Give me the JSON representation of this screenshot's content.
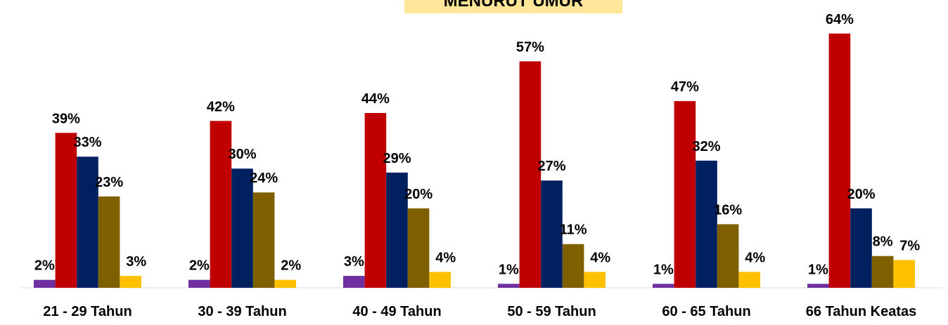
{
  "chart_data": {
    "type": "bar",
    "title": "MENURUT UMUR",
    "categories": [
      "21 - 29 Tahun",
      "30 - 39 Tahun",
      "40 - 49 Tahun",
      "50 - 59 Tahun",
      "60 - 65 Tahun",
      "66 Tahun Keatas"
    ],
    "series": [
      {
        "color": "#7030a0",
        "values": [
          2,
          2,
          3,
          1,
          1,
          1
        ],
        "value_labels": [
          "2%",
          "2%",
          "3%",
          "1%",
          "1%",
          "1%"
        ]
      },
      {
        "color": "#c00000",
        "values": [
          39,
          42,
          44,
          57,
          47,
          64
        ],
        "value_labels": [
          "39%",
          "42%",
          "44%",
          "57%",
          "47%",
          "64%"
        ]
      },
      {
        "color": "#002060",
        "values": [
          33,
          30,
          29,
          27,
          32,
          20
        ],
        "value_labels": [
          "33%",
          "30%",
          "29%",
          "27%",
          "32%",
          "20%"
        ]
      },
      {
        "color": "#7f6000",
        "values": [
          23,
          24,
          20,
          11,
          16,
          8
        ],
        "value_labels": [
          "23%",
          "24%",
          "20%",
          "11%",
          "16%",
          "8%"
        ]
      },
      {
        "color": "#ffc000",
        "values": [
          3,
          2,
          4,
          4,
          4,
          7
        ],
        "value_labels": [
          "3%",
          "2%",
          "4%",
          "4%",
          "4%",
          "7%"
        ]
      }
    ]
  }
}
